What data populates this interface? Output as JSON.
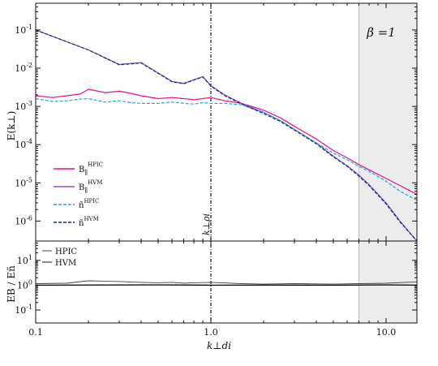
{
  "chart_data": [
    {
      "type": "line",
      "panel": "top",
      "xscale": "log",
      "yscale": "log",
      "xlim": [
        0.1,
        15
      ],
      "ylim": [
        3e-07,
        0.5
      ],
      "ylabel": "E(k⊥)",
      "x_ticks": [
        "0.1",
        "1.0",
        "10.0"
      ],
      "y_ticks": [
        "10-1",
        "10-2",
        "10-3",
        "10-4",
        "10-5",
        "10-6"
      ],
      "annotation": "β =1",
      "vline_label": "k⊥ρi",
      "vline_x": 1.0,
      "shaded_from_x": 7.0,
      "legend_position": "lower-left",
      "series": [
        {
          "name": "B∥ HPIC",
          "color": "#e0148a",
          "dash": "solid",
          "x": [
            0.1,
            0.125,
            0.15,
            0.18,
            0.2,
            0.25,
            0.3,
            0.35,
            0.4,
            0.5,
            0.6,
            0.7,
            0.8,
            0.9,
            1.0,
            1.2,
            1.5,
            2.0,
            2.5,
            3.0,
            4.0,
            5.0,
            6.0,
            7.0,
            8.0,
            10.0,
            12.0,
            15.0
          ],
          "values": [
            0.0019,
            0.0017,
            0.0019,
            0.0021,
            0.0028,
            0.0023,
            0.0025,
            0.0022,
            0.0019,
            0.0016,
            0.0017,
            0.0016,
            0.0015,
            0.0016,
            0.0017,
            0.0014,
            0.0012,
            0.0008,
            0.0005,
            0.0003,
            0.00014,
            7e-05,
            4.5e-05,
            3e-05,
            2.2e-05,
            1.3e-05,
            8.5e-06,
            5e-06
          ]
        },
        {
          "name": "B∥ HVM",
          "color": "#8a4fd0",
          "dash": "solid",
          "x": [
            0.1,
            0.2,
            0.3,
            0.4,
            0.5,
            0.6,
            0.7,
            0.8,
            0.9,
            1.0,
            1.2,
            1.5,
            2.0,
            2.5,
            3.0,
            4.0,
            5.0,
            6.0,
            7.0,
            8.0,
            10.0,
            12.0,
            15.0
          ],
          "values": [
            0.1,
            0.03,
            0.0125,
            0.014,
            0.0075,
            0.0045,
            0.004,
            0.005,
            0.006,
            0.0035,
            0.002,
            0.0012,
            0.0007,
            0.00042,
            0.00025,
            0.00011,
            5e-05,
            2.8e-05,
            1.6e-05,
            9e-06,
            3e-06,
            1e-06,
            3e-07
          ]
        },
        {
          "name": "ñ HPIC",
          "color": "#22a6df",
          "dash": "dashed",
          "x": [
            0.1,
            0.125,
            0.15,
            0.18,
            0.2,
            0.25,
            0.3,
            0.35,
            0.4,
            0.5,
            0.6,
            0.7,
            0.8,
            0.9,
            1.0,
            1.2,
            1.5,
            2.0,
            2.5,
            3.0,
            4.0,
            5.0,
            6.0,
            7.0,
            8.0,
            10.0,
            12.0,
            15.0
          ],
          "values": [
            0.0016,
            0.00135,
            0.0014,
            0.00155,
            0.0016,
            0.0013,
            0.0014,
            0.00125,
            0.0012,
            0.0012,
            0.0013,
            0.0012,
            0.00115,
            0.00125,
            0.0012,
            0.0012,
            0.0011,
            0.0007,
            0.00042,
            0.00025,
            0.00011,
            6e-05,
            4e-05,
            2.7e-05,
            2e-05,
            1.1e-05,
            6e-06,
            3.5e-06
          ]
        },
        {
          "name": "ñ HVM",
          "color": "#1a2a78",
          "dash": "dashed",
          "x": [
            0.1,
            0.2,
            0.3,
            0.4,
            0.5,
            0.6,
            0.7,
            0.8,
            0.9,
            1.0,
            1.2,
            1.5,
            2.0,
            2.5,
            3.0,
            4.0,
            5.0,
            6.0,
            7.0,
            8.0,
            10.0,
            12.0,
            15.0
          ],
          "values": [
            0.1,
            0.03,
            0.0122,
            0.0137,
            0.0073,
            0.0044,
            0.0039,
            0.0049,
            0.0059,
            0.0034,
            0.0019,
            0.00115,
            0.00065,
            0.0004,
            0.00024,
            0.000105,
            4.8e-05,
            2.7e-05,
            1.5e-05,
            8.5e-06,
            2.8e-06,
            9.5e-07,
            3e-07
          ]
        }
      ]
    },
    {
      "type": "line",
      "panel": "bottom",
      "xscale": "log",
      "yscale": "log",
      "xlim": [
        0.1,
        15
      ],
      "ylim": [
        0.03,
        60
      ],
      "xlabel": "k⊥di",
      "ylabel": "EB / Eñ",
      "x_ticks": [
        "0.1",
        "1.0",
        "10.0"
      ],
      "y_ticks": [
        "101",
        "100",
        "10-1"
      ],
      "legend_position": "top-left",
      "series": [
        {
          "name": "HPIC",
          "color": "#444444",
          "dash": "solid",
          "x": [
            0.1,
            0.15,
            0.2,
            0.3,
            0.4,
            0.5,
            0.6,
            0.7,
            0.8,
            1.0,
            1.5,
            2.0,
            3.0,
            5.0,
            7.0,
            10.0,
            15.0
          ],
          "values": [
            1.15,
            1.2,
            1.5,
            1.4,
            1.3,
            1.25,
            1.3,
            1.2,
            1.25,
            1.3,
            1.15,
            1.1,
            1.15,
            1.1,
            1.15,
            1.2,
            1.35
          ]
        },
        {
          "name": "HVM",
          "color": "#111111",
          "dash": "solid",
          "x": [
            0.1,
            0.5,
            1.0,
            2.0,
            5.0,
            10.0,
            15.0
          ],
          "values": [
            1.0,
            1.02,
            1.0,
            1.01,
            1.0,
            1.02,
            1.0
          ]
        }
      ]
    }
  ],
  "labels": {
    "ylabel_top": "E(k⊥)",
    "ylabel_bottom": "EB / Eñ",
    "xlabel": "k⊥di",
    "beta": "β =1",
    "kperp_rho": "k⊥ρi"
  },
  "legend_top": [
    {
      "base": "B",
      "sub": "∥",
      "sup": "HPIC"
    },
    {
      "base": "B",
      "sub": "∥",
      "sup": "HVM"
    },
    {
      "base": "ñ",
      "sub": "",
      "sup": "HPIC"
    },
    {
      "base": "ñ",
      "sub": "",
      "sup": "HVM"
    }
  ],
  "legend_bottom": [
    "HPIC",
    "HVM"
  ]
}
